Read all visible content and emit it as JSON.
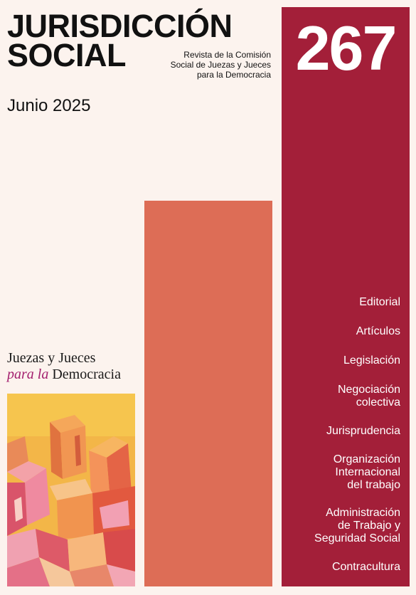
{
  "header": {
    "title_line1": "JURISDICCIÓN",
    "title_line2": "SOCIAL",
    "subtitle_line1": "Revista de la Comisión",
    "subtitle_line2": "Social de Juezas y Jueces",
    "subtitle_line3": "para la Democracia",
    "date": "Junio 2025",
    "issue_number": "267"
  },
  "sections": [
    {
      "lines": [
        "Editorial"
      ]
    },
    {
      "lines": [
        "Artículos"
      ]
    },
    {
      "lines": [
        "Legislación"
      ]
    },
    {
      "lines": [
        "Negociación",
        "colectiva"
      ]
    },
    {
      "lines": [
        "Jurisprudencia"
      ]
    },
    {
      "lines": [
        "Organización",
        "Internacional",
        "del trabajo"
      ]
    },
    {
      "lines": [
        "Administración",
        "de Trabajo y",
        "Seguridad Social"
      ]
    },
    {
      "lines": [
        "Contracultura"
      ]
    }
  ],
  "association": {
    "line1": "Juezas y Jueces",
    "line2_italic": "para la",
    "line2_normal": "Democracia"
  },
  "colors": {
    "background": "#fcf3ee",
    "crimson": "#a31f39",
    "coral": "#dd6d56",
    "magenta_accent": "#a31f6e"
  }
}
